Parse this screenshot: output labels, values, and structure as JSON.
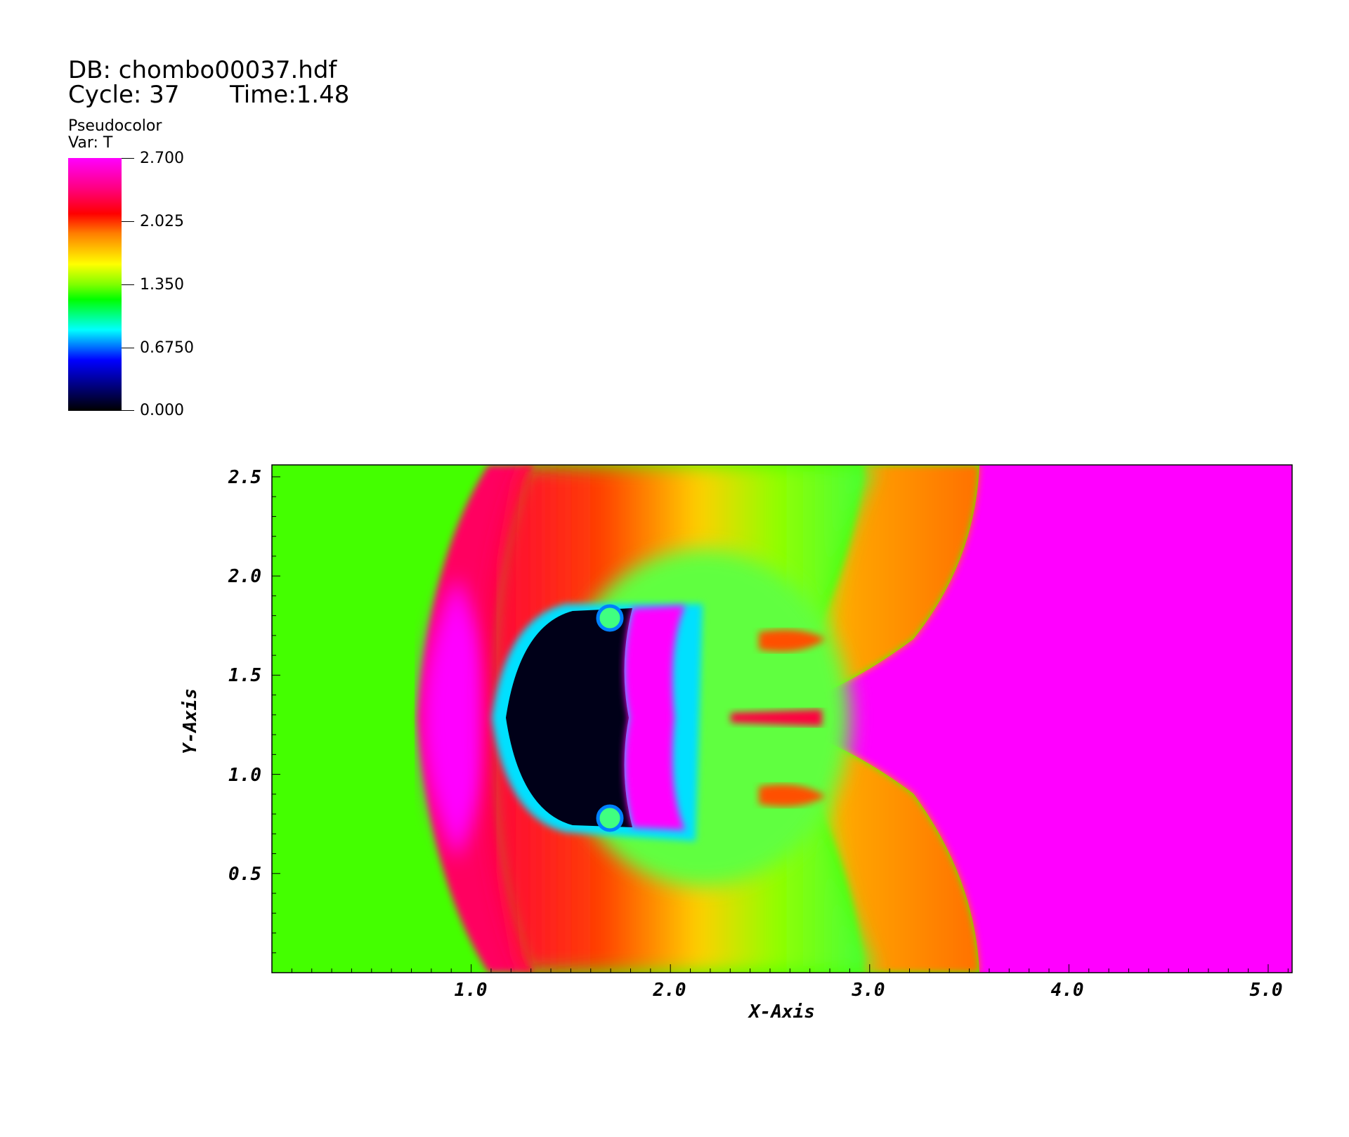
{
  "header": {
    "db_label": "DB: chombo00037.hdf",
    "cycle_label": "Cycle: 37",
    "time_label": "Time:1.48"
  },
  "legend": {
    "title": "Pseudocolor",
    "var": "Var: T",
    "ticks": [
      "2.700",
      "2.025",
      "1.350",
      "0.6750",
      "0.000"
    ],
    "min": 0.0,
    "max": 2.7
  },
  "chart_data": {
    "type": "heatmap",
    "variable": "T",
    "xlabel": "X-Axis",
    "ylabel": "Y-Axis",
    "xlim": [
      0.0,
      5.12
    ],
    "ylim": [
      0.0,
      2.56
    ],
    "x_ticks": [
      "1.0",
      "2.0",
      "3.0",
      "4.0",
      "5.0"
    ],
    "y_ticks": [
      "0.5",
      "1.0",
      "1.5",
      "2.0",
      "2.5"
    ],
    "x_tick_values": [
      1.0,
      2.0,
      3.0,
      4.0,
      5.0
    ],
    "y_tick_values": [
      0.5,
      1.0,
      1.5,
      2.0,
      2.5
    ],
    "colormap": [
      "#000000",
      "#0000ff",
      "#00ffff",
      "#00ff00",
      "#ffff00",
      "#ff8000",
      "#ff0000",
      "#ff00ff"
    ],
    "colors": {
      "ambient": "#44ff00",
      "post_shock": "#ff00ff",
      "bubble_core": "#000018"
    }
  }
}
